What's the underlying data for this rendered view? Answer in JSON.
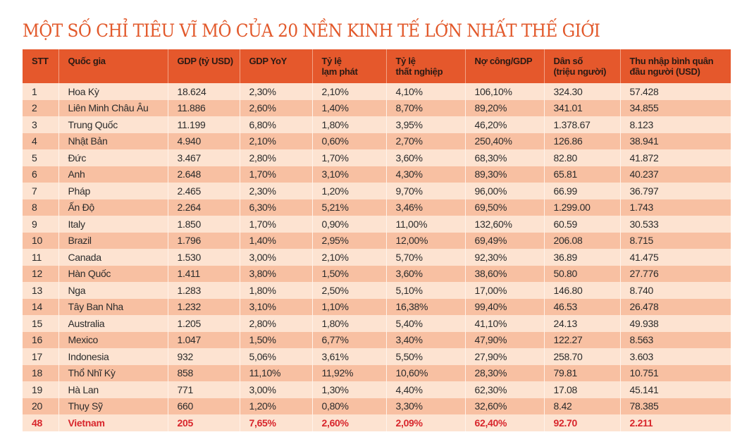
{
  "title": "MỘT SỐ CHỈ TIÊU VĨ MÔ CỦA 20 NỀN KINH TẾ LỚN NHẤT THẾ GIỚI",
  "colors": {
    "accent": "#e5582c",
    "title": "#e2592b",
    "row_light": "#fde3d1",
    "row_dark": "#f8c0a2",
    "highlight_text": "#d8262c"
  },
  "columns": [
    {
      "line1": "STT",
      "line2": ""
    },
    {
      "line1": "Quốc gia",
      "line2": ""
    },
    {
      "line1": "GDP (tỷ USD)",
      "line2": ""
    },
    {
      "line1": "GDP YoY",
      "line2": ""
    },
    {
      "line1": "Tỷ lệ",
      "line2": "lạm phát"
    },
    {
      "line1": "Tỷ lệ",
      "line2": "thất nghiệp"
    },
    {
      "line1": "Nợ công/GDP",
      "line2": ""
    },
    {
      "line1": "Dân số",
      "line2": "(triệu người)"
    },
    {
      "line1": "Thu nhập bình quân",
      "line2": "đầu người (USD)"
    }
  ],
  "rows": [
    [
      "1",
      "Hoa Kỳ",
      "18.624",
      "2,30%",
      "2,10%",
      "4,10%",
      "106,10%",
      "324.30",
      "57.428"
    ],
    [
      "2",
      "Liên Minh Châu Âu",
      "11.886",
      "2,60%",
      "1,40%",
      "8,70%",
      "89,20%",
      "341.01",
      "34.855"
    ],
    [
      "3",
      "Trung Quốc",
      "11.199",
      "6,80%",
      "1,80%",
      "3,95%",
      "46,20%",
      "1.378.67",
      "8.123"
    ],
    [
      "4",
      "Nhật Bản",
      "4.940",
      "2,10%",
      "0,60%",
      "2,70%",
      "250,40%",
      "126.86",
      "38.941"
    ],
    [
      "5",
      "Đức",
      "3.467",
      "2,80%",
      "1,70%",
      "3,60%",
      "68,30%",
      "82.80",
      "41.872"
    ],
    [
      "6",
      "Anh",
      "2.648",
      "1,70%",
      "3,10%",
      "4,30%",
      "89,30%",
      "65.81",
      "40.237"
    ],
    [
      "7",
      "Pháp",
      "2.465",
      "2,30%",
      "1,20%",
      "9,70%",
      "96,00%",
      "66.99",
      "36.797"
    ],
    [
      "8",
      "Ấn Độ",
      "2.264",
      "6,30%",
      "5,21%",
      "3,46%",
      "69,50%",
      "1.299.00",
      "1.743"
    ],
    [
      "9",
      "Italy",
      "1.850",
      "1,70%",
      "0,90%",
      "11,00%",
      "132,60%",
      "60.59",
      "30.533"
    ],
    [
      "10",
      "Brazil",
      "1.796",
      "1,40%",
      "2,95%",
      "12,00%",
      "69,49%",
      "206.08",
      "8.715"
    ],
    [
      "11",
      "Canada",
      "1.530",
      "3,00%",
      "2,10%",
      "5,70%",
      "92,30%",
      "36.89",
      "41.475"
    ],
    [
      "12",
      "Hàn Quốc",
      "1.411",
      "3,80%",
      "1,50%",
      "3,60%",
      "38,60%",
      "50.80",
      "27.776"
    ],
    [
      "13",
      "Nga",
      "1.283",
      "1,80%",
      "2,50%",
      "5,10%",
      "17,00%",
      "146.80",
      "8.740"
    ],
    [
      "14",
      "Tây Ban Nha",
      "1.232",
      "3,10%",
      "1,10%",
      "16,38%",
      "99,40%",
      "46.53",
      "26.478"
    ],
    [
      "15",
      "Australia",
      "1.205",
      "2,80%",
      "1,80%",
      "5,40%",
      "41,10%",
      "24.13",
      "49.938"
    ],
    [
      "16",
      "Mexico",
      "1.047",
      "1,50%",
      "6,77%",
      "3,40%",
      "47,90%",
      "122.27",
      "8.563"
    ],
    [
      "17",
      "Indonesia",
      "932",
      "5,06%",
      "3,61%",
      "5,50%",
      "27,90%",
      "258.70",
      "3.603"
    ],
    [
      "18",
      "Thổ Nhĩ Kỳ",
      "858",
      "11,10%",
      "11,92%",
      "10,60%",
      "28,30%",
      "79.81",
      "10.751"
    ],
    [
      "19",
      "Hà Lan",
      "771",
      "3,00%",
      "1,30%",
      "4,40%",
      "62,30%",
      "17.08",
      "45.141"
    ],
    [
      "20",
      "Thụy Sỹ",
      "660",
      "1,20%",
      "0,80%",
      "3,30%",
      "32,60%",
      "8.42",
      "78.385"
    ]
  ],
  "highlight_row": [
    "48",
    "Vietnam",
    "205",
    "7,65%",
    "2,60%",
    "2,09%",
    "62,40%",
    "92.70",
    "2.211"
  ]
}
